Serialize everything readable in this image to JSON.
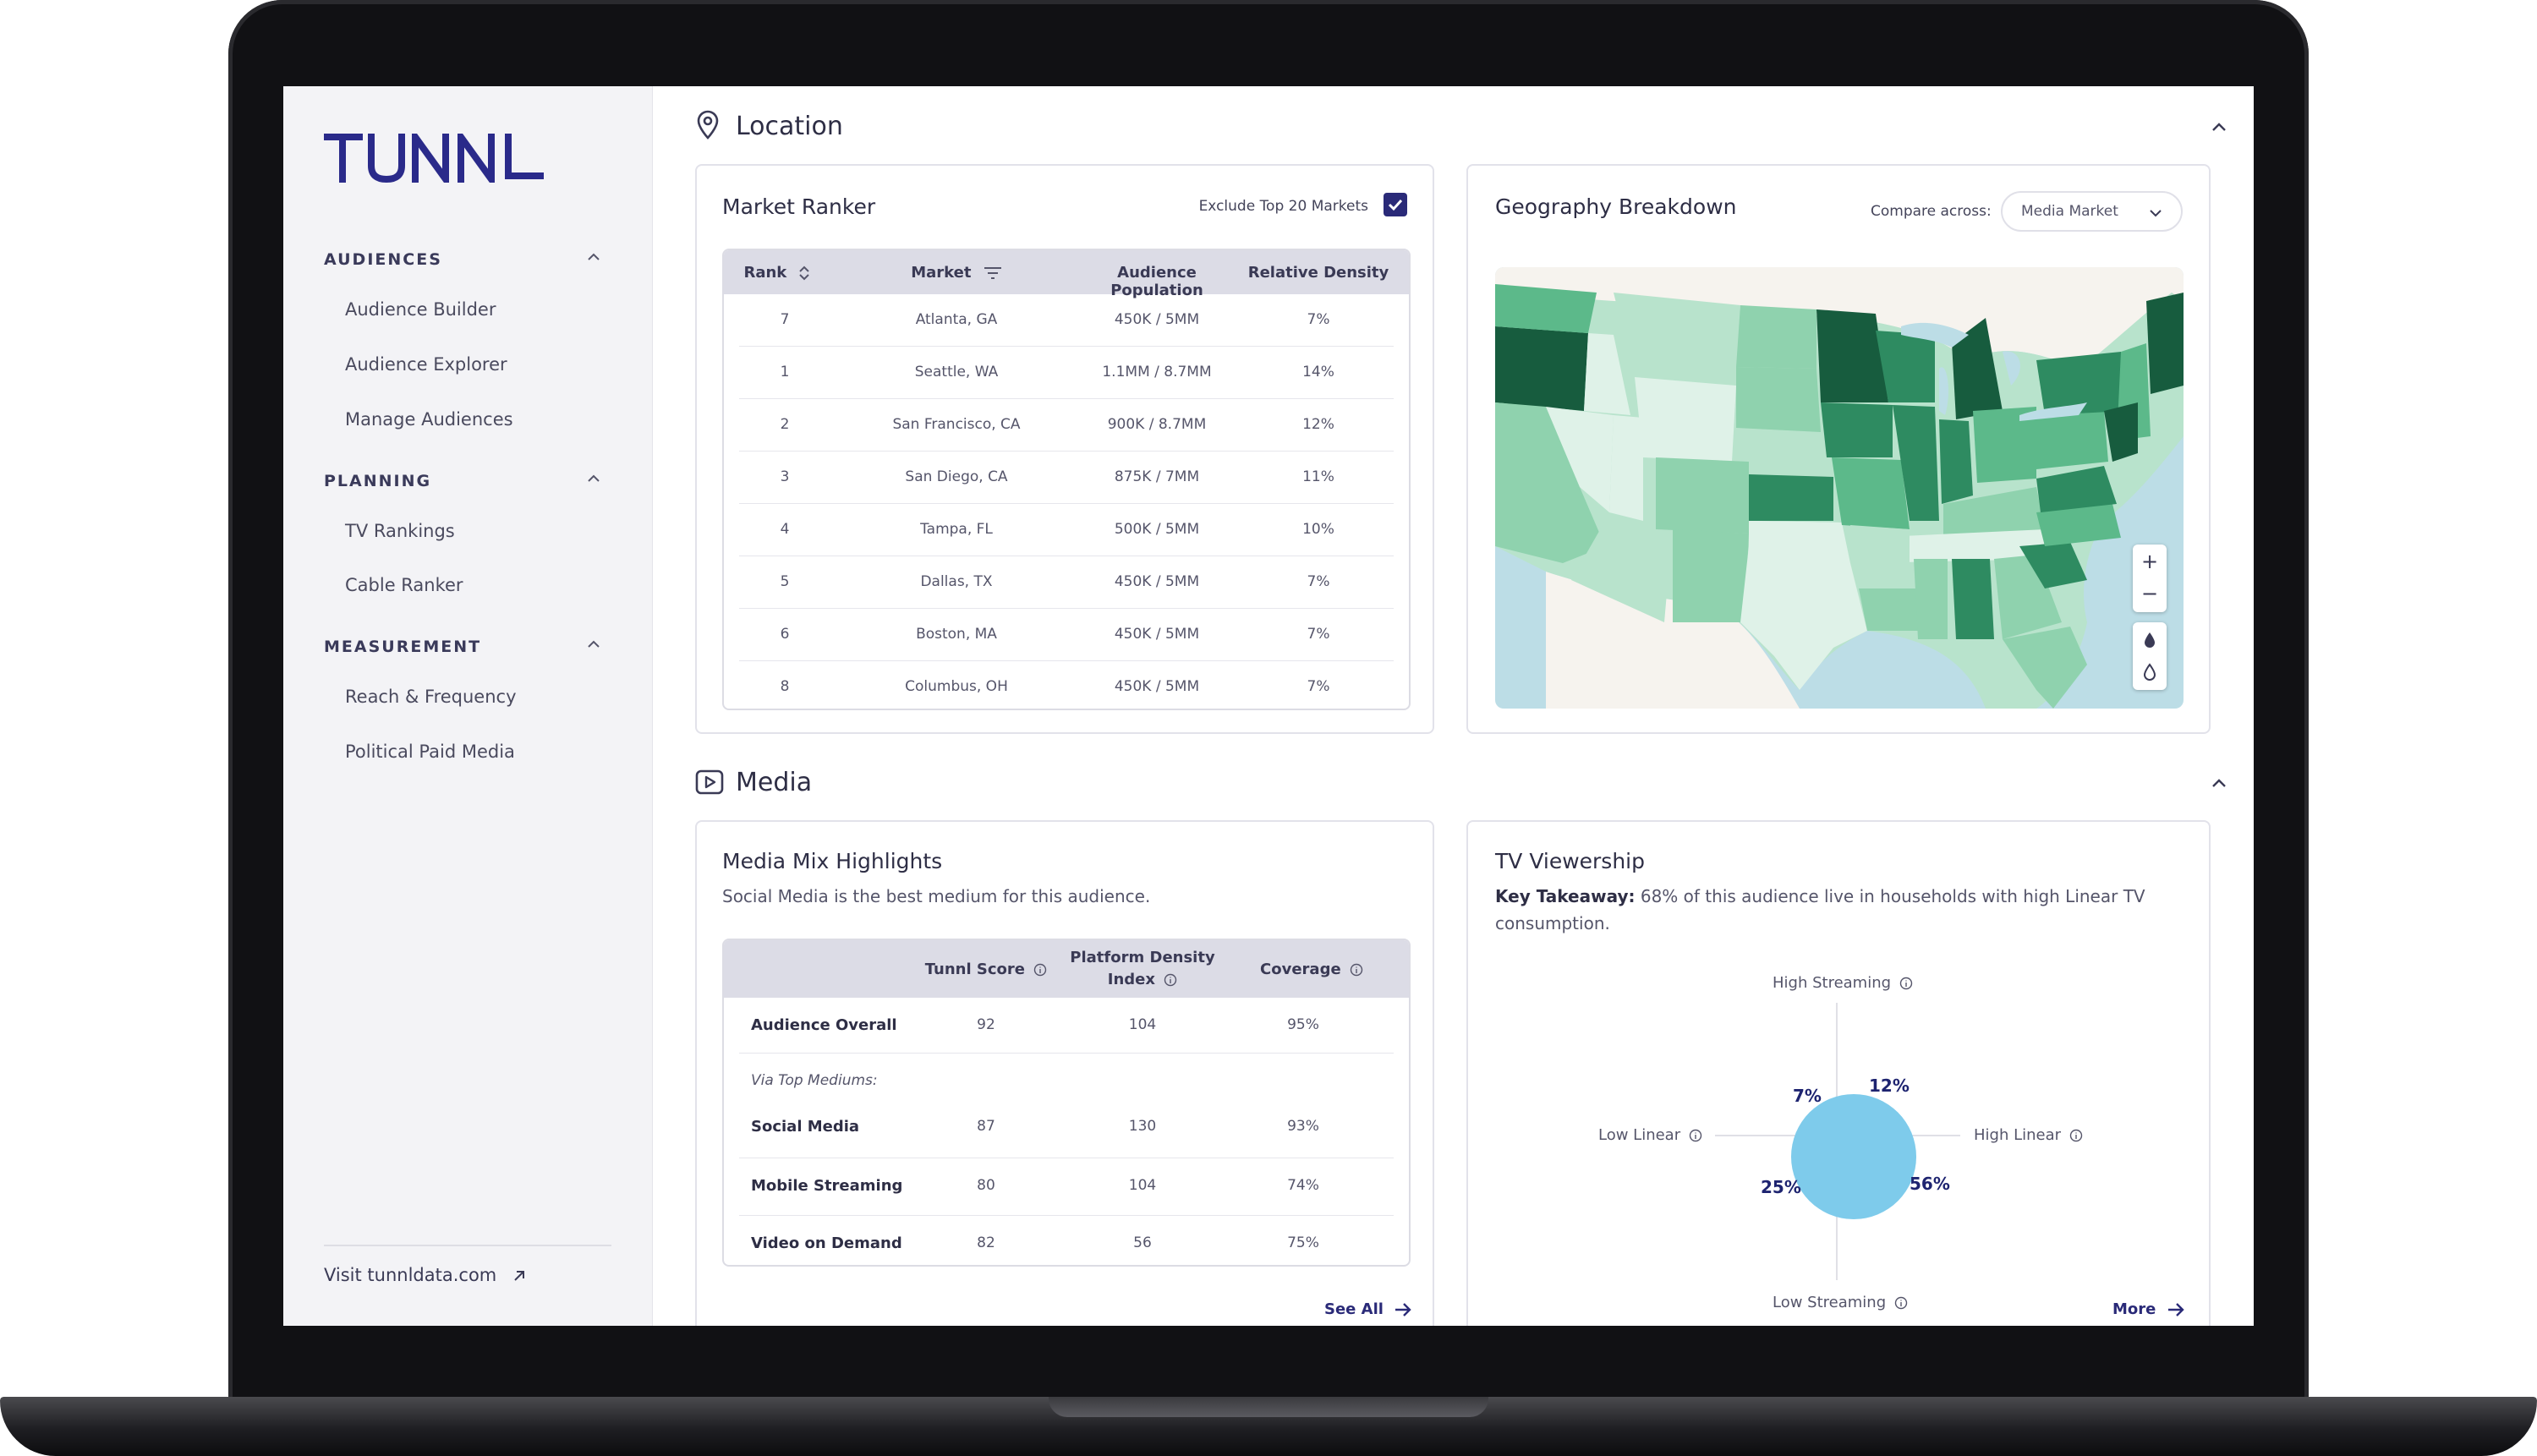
{
  "brand": {
    "logo_text": "TUNNL",
    "logo_color": "#2a2a8a",
    "accent": "#2a2a78"
  },
  "sidebar": {
    "sections": [
      {
        "label": "AUDIENCES",
        "items": [
          "Audience Builder",
          "Audience Explorer",
          "Manage Audiences"
        ]
      },
      {
        "label": "PLANNING",
        "items": [
          "TV Rankings",
          "Cable Ranker"
        ]
      },
      {
        "label": "MEASUREMENT",
        "items": [
          "Reach & Frequency",
          "Political Paid Media"
        ]
      }
    ],
    "visit_link": "Visit tunnldata.com"
  },
  "location": {
    "title": "Location",
    "market_ranker": {
      "title": "Market Ranker",
      "exclude_label": "Exclude Top 20 Markets",
      "exclude_checked": true,
      "columns": [
        "Rank",
        "Market",
        "Audience Population",
        "Relative Density"
      ],
      "rows": [
        [
          "7",
          "Atlanta, GA",
          "450K / 5MM",
          "7%"
        ],
        [
          "1",
          "Seattle, WA",
          "1.1MM / 8.7MM",
          "14%"
        ],
        [
          "2",
          "San Francisco, CA",
          "900K / 8.7MM",
          "12%"
        ],
        [
          "3",
          "San Diego, CA",
          "875K / 7MM",
          "11%"
        ],
        [
          "4",
          "Tampa, FL",
          "500K / 5MM",
          "10%"
        ],
        [
          "5",
          "Dallas, TX",
          "450K / 5MM",
          "7%"
        ],
        [
          "6",
          "Boston, MA",
          "450K / 5MM",
          "7%"
        ],
        [
          "8",
          "Columbus, OH",
          "450K / 5MM",
          "7%"
        ]
      ]
    },
    "geography": {
      "title": "Geography Breakdown",
      "compare_label": "Compare across:",
      "compare_value": "Media Market",
      "zoom_in": "+",
      "zoom_out": "−",
      "map_colors": {
        "water": "#bcdde6",
        "land_out": "#f6f3ee",
        "c1": "#dff2e8",
        "c2": "#b8e3cc",
        "c3": "#8fd2ae",
        "c4": "#5cb98a",
        "c5": "#2e8b61",
        "c6": "#175c3e"
      }
    }
  },
  "media": {
    "title": "Media",
    "mix": {
      "title": "Media Mix Highlights",
      "subtitle": "Social Media is the best medium for this audience.",
      "columns": [
        "Tunnl Score",
        "Platform Density",
        "Index",
        "Coverage"
      ],
      "overall": {
        "label": "Audience Overall",
        "values": [
          "92",
          "104",
          "95%"
        ]
      },
      "via_label": "Via Top Mediums:",
      "rows": [
        {
          "label": "Social Media",
          "values": [
            "87",
            "130",
            "93%"
          ]
        },
        {
          "label": "Mobile Streaming",
          "values": [
            "80",
            "104",
            "74%"
          ]
        },
        {
          "label": "Video on Demand",
          "values": [
            "82",
            "56",
            "75%"
          ]
        }
      ],
      "see_all": "See All"
    },
    "tv": {
      "title": "TV Viewership",
      "takeaway_label": "Key Takeaway:",
      "takeaway_line1": "68% of this audience live in households with high Linear TV",
      "takeaway_line2": "consumption.",
      "axis": {
        "top": "High Streaming",
        "bottom": "Low Streaming",
        "left": "Low Linear",
        "right": "High Linear"
      },
      "quadrants": {
        "top_left": "7%",
        "top_right": "12%",
        "bottom_left": "25%",
        "bottom_right": "56%"
      },
      "bubble_color": "#7ecbeb",
      "more": "More"
    }
  }
}
